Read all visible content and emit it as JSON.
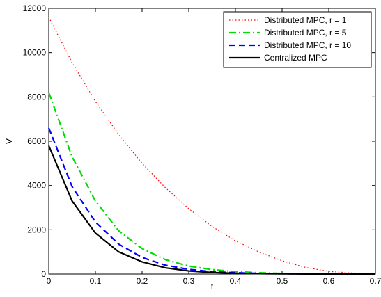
{
  "chart_data": {
    "type": "line",
    "xlabel": "t",
    "ylabel": "V",
    "xlim": [
      0,
      0.7
    ],
    "ylim": [
      0,
      12000
    ],
    "xticks": [
      "0",
      "0.1",
      "0.2",
      "0.3",
      "0.4",
      "0.5",
      "0.6",
      "0.7"
    ],
    "yticks": [
      "0",
      "2000",
      "4000",
      "6000",
      "8000",
      "10000",
      "12000"
    ],
    "grid": false,
    "legend_position": "top-right",
    "series": [
      {
        "name": "Distributed MPC, r = 1",
        "color": "#ff0000",
        "dash": "dotted",
        "x": [
          0,
          0.05,
          0.1,
          0.15,
          0.2,
          0.25,
          0.3,
          0.35,
          0.4,
          0.45,
          0.5,
          0.55,
          0.6,
          0.65,
          0.7
        ],
        "y": [
          11600,
          9550,
          7800,
          6300,
          5000,
          3900,
          2950,
          2150,
          1500,
          1000,
          600,
          300,
          120,
          50,
          30
        ]
      },
      {
        "name": "Distributed MPC, r = 5",
        "color": "#00dd00",
        "dash": "dashdot",
        "x": [
          0,
          0.05,
          0.1,
          0.15,
          0.2,
          0.25,
          0.3,
          0.35,
          0.4,
          0.45,
          0.5,
          0.55,
          0.6,
          0.65,
          0.7
        ],
        "y": [
          8200,
          5300,
          3300,
          1950,
          1150,
          650,
          360,
          200,
          110,
          60,
          30,
          15,
          8,
          4,
          2
        ]
      },
      {
        "name": "Distributed MPC, r = 10",
        "color": "#0000ff",
        "dash": "dashed",
        "x": [
          0,
          0.05,
          0.1,
          0.15,
          0.2,
          0.25,
          0.3,
          0.35,
          0.4,
          0.45,
          0.5,
          0.55,
          0.6,
          0.65,
          0.7
        ],
        "y": [
          6600,
          3950,
          2350,
          1350,
          750,
          400,
          210,
          110,
          60,
          30,
          15,
          8,
          4,
          2,
          1
        ]
      },
      {
        "name": "Centralized MPC",
        "color": "#000000",
        "dash": "solid",
        "x": [
          0,
          0.05,
          0.1,
          0.15,
          0.2,
          0.25,
          0.3,
          0.35,
          0.4,
          0.45,
          0.5,
          0.55,
          0.6,
          0.65,
          0.7
        ],
        "y": [
          5800,
          3300,
          1850,
          1000,
          550,
          280,
          140,
          70,
          35,
          18,
          9,
          4,
          2,
          1,
          0
        ]
      }
    ]
  }
}
